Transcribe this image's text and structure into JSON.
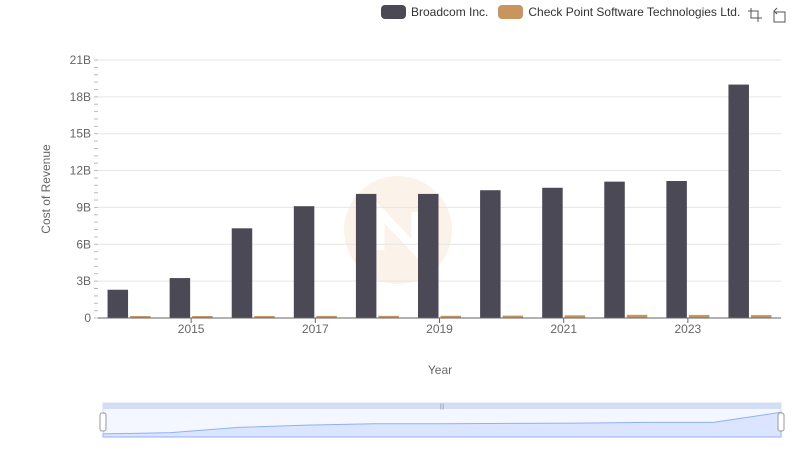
{
  "legend": {
    "series_1": "Broadcom Inc.",
    "series_2": "Check Point Software Technologies Ltd."
  },
  "toolbar": {
    "zoom_icon": "zoom-select-icon",
    "restore_icon": "restore-icon"
  },
  "colors": {
    "broadcom": "#4a4955",
    "checkpoint": "#c8955f",
    "grid": "#e6e6e6",
    "zoom_fill": "#dbe5ff",
    "zoom_line": "#8fb0f7"
  },
  "chart_data": {
    "type": "bar",
    "xlabel": "Year",
    "ylabel": "Cost of Revenue",
    "ylim": [
      0,
      21000000000
    ],
    "y_ticks": [
      "0",
      "3B",
      "6B",
      "9B",
      "12B",
      "15B",
      "18B",
      "21B"
    ],
    "x_tick_labels": [
      "2015",
      "2017",
      "2019",
      "2021",
      "2023"
    ],
    "categories": [
      "2014",
      "2015",
      "2016",
      "2017",
      "2018",
      "2019",
      "2020",
      "2021",
      "2022",
      "2023",
      "2024"
    ],
    "series": [
      {
        "name": "Broadcom Inc.",
        "values": [
          2300000000,
          3250000000,
          7300000000,
          9100000000,
          10100000000,
          10100000000,
          10400000000,
          10600000000,
          11100000000,
          11150000000,
          19000000000
        ]
      },
      {
        "name": "Check Point Software Technologies Ltd.",
        "values": [
          130000000,
          150000000,
          160000000,
          170000000,
          175000000,
          180000000,
          195000000,
          220000000,
          260000000,
          250000000,
          240000000
        ]
      }
    ],
    "grid": true,
    "legend_position": "top-right"
  }
}
